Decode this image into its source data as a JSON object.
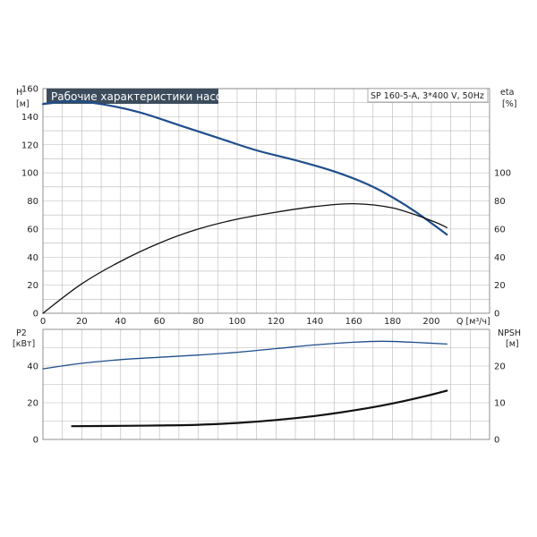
{
  "chart_data": [
    {
      "type": "line",
      "title": "Рабочие характеристики насоса",
      "subtitle": "SP 160-5-A, 3*400 V, 50Hz",
      "x_label_unit": "Q [м³/ч]",
      "x_ticks": [
        0,
        20,
        40,
        60,
        80,
        100,
        120,
        140,
        160,
        180,
        200
      ],
      "xlim": [
        0,
        230
      ],
      "y_left_label": "H",
      "y_left_unit": "[м]",
      "y_left_ticks": [
        0,
        20,
        40,
        60,
        80,
        100,
        120,
        140,
        160
      ],
      "y_left_lim": [
        0,
        160
      ],
      "y_right_label": "eta",
      "y_right_unit": "[%]",
      "y_right_ticks": [
        0,
        20,
        40,
        60,
        80,
        100
      ],
      "y_right_lim": [
        0,
        160
      ],
      "grid": true,
      "series": [
        {
          "axis": "left",
          "color": "#1f4e8c",
          "x": [
            0,
            15,
            30,
            50,
            70,
            90,
            110,
            130,
            150,
            170,
            190,
            208
          ],
          "y": [
            149,
            151,
            149,
            143,
            134,
            125,
            116,
            109,
            101,
            90,
            74,
            56
          ]
        },
        {
          "axis": "right",
          "color": "#111111",
          "x": [
            0,
            20,
            40,
            60,
            80,
            100,
            120,
            140,
            160,
            180,
            200,
            208
          ],
          "y": [
            0,
            21,
            37,
            50,
            60,
            67,
            72,
            76,
            78,
            75,
            66,
            61
          ]
        }
      ]
    },
    {
      "type": "line",
      "x_ticks": [
        0,
        20,
        40,
        60,
        80,
        100,
        120,
        140,
        160,
        180,
        200
      ],
      "xlim": [
        0,
        230
      ],
      "y_left_label": "P2",
      "y_left_unit": "[кВт]",
      "y_left_ticks": [
        0,
        20,
        40
      ],
      "y_left_lim": [
        0,
        60
      ],
      "y_right_label": "NPSH",
      "y_right_unit": "[м]",
      "y_right_ticks": [
        0,
        10,
        20
      ],
      "y_right_lim": [
        0,
        30
      ],
      "grid": true,
      "series": [
        {
          "axis": "left",
          "color": "#1f4e8c",
          "x": [
            0,
            20,
            40,
            60,
            80,
            100,
            120,
            140,
            160,
            175,
            190,
            208
          ],
          "y": [
            38.5,
            41.5,
            43.5,
            44.8,
            46,
            47.5,
            49.5,
            51.5,
            53,
            53.5,
            53,
            52
          ]
        },
        {
          "axis": "right",
          "color": "#111111",
          "x": [
            15,
            40,
            60,
            80,
            100,
            120,
            140,
            160,
            180,
            200,
            208
          ],
          "y": [
            3.6,
            3.7,
            3.8,
            4.0,
            4.5,
            5.3,
            6.4,
            7.9,
            9.8,
            12.2,
            13.3
          ]
        }
      ]
    }
  ]
}
